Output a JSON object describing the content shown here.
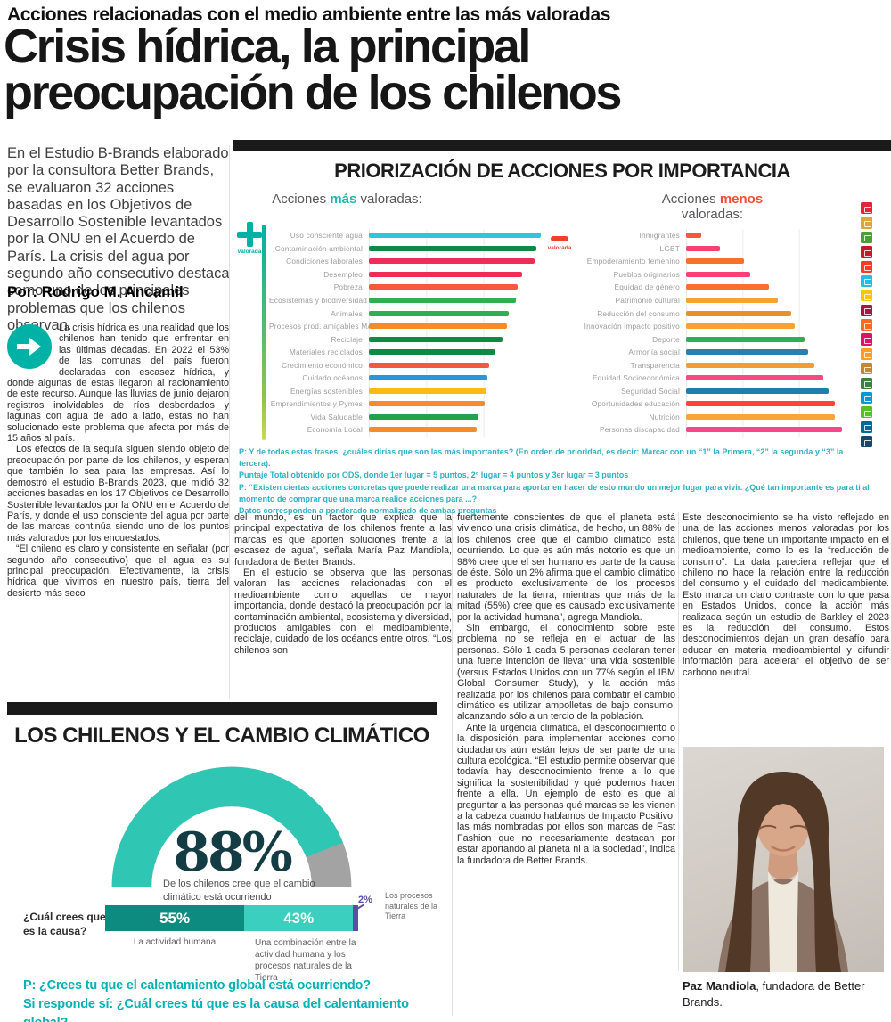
{
  "page": {
    "kicker": "Acciones relacionadas con el medio ambiente entre las más valoradas",
    "headline_line1": "Crisis hídrica, la principal",
    "headline_line2": "preocupación de los chilenos"
  },
  "intro": {
    "text": "En el Estudio B-Brands elaborado por la consultora Better Brands, se evaluaron 32 acciones basadas en los Objetivos de Desarrollo Sostenible levantados por la ONU en el Acuerdo de París. La crisis del agua por segundo año consecutivo destaca como uno de los principales problemas que los chilenos observan.",
    "byline": "Por: Rodrigo M. Ancamil"
  },
  "article": {
    "col1": [
      "La crisis hídrica es una realidad que los chilenos han tenido que enfrentar en las últimas décadas. En 2022 el 53% de las comunas del país fueron declaradas con escasez hídrica, y donde algunas de estas llegaron al racionamiento de este recurso. Aunque las lluvias de junio dejaron registros inolvidables de ríos desbordados y lagunas con agua de lado a lado, estas no han solucionado este problema que afecta por más de 15 años al país.",
      "Los efectos de la sequía siguen siendo objeto de preocupación por parte de los chilenos, y esperan que también lo sea para las empresas. Así lo demostró el estudio B-Brands 2023, que midió 32 acciones basadas en los 17 Objetivos de Desarrollo Sostenible levantados por la ONU en el Acuerdo de París, y donde el uso consciente del agua por parte de las marcas continúa siendo uno de los puntos más valorados por los encuestados.",
      "“El chileno es claro y consistente en señalar (por segundo año consecutivo) que el agua es su principal preocupación. Efectivamente, la crisis hídrica que vivimos en nuestro país, tierra del desierto más seco"
    ],
    "col2": [
      "del mundo, es un factor que explica que la principal expectativa de los chilenos frente a las marcas es que aporten soluciones frente a la escasez de agua”, señala María Paz Mandiola, fundadora de Better Brands.",
      "En el estudio se observa que las personas valoran las acciones relacionadas con el medioambiente como aquellas de mayor importancia, donde destacó la preocupación por la contaminación ambiental, ecosistema y diversidad, productos amigables con el medioambiente, reciclaje, cuidado de los océanos entre otros. “Los chilenos son"
    ],
    "col3": [
      "fuertemente conscientes de que el planeta está viviendo una crisis climática, de hecho, un 88% de los chilenos cree que el cambio climático está ocurriendo. Lo que es aún más notorio es que un 98% cree que el ser humano es parte de la causa de éste. Sólo un 2% afirma que el cambio climático es producto exclusivamente de los procesos naturales de la tierra, mientras que más de la mitad (55%) cree que es causado exclusivamente por la actividad humana”, agrega Mandiola.",
      "Sin embargo, el conocimiento sobre este problema no se refleja en el actuar de las personas. Sólo 1 cada 5 personas declaran tener una fuerte intención de llevar una vida sostenible (versus Estados Unidos con un 77% según el IBM Global Consumer Study), y la acción más realizada por los chilenos para combatir el cambio climático es utilizar ampolletas de bajo consumo, alcanzando sólo a un tercio de la población.",
      "Ante la urgencia climática, el desconocimiento o la disposición para implementar acciones como ciudadanos aún están lejos de ser parte de una cultura ecológica. “El estudio permite observar que todavía hay desconocimiento frente a lo que significa la sostenibilidad y qué podemos hacer frente a ella. Un ejemplo de esto es que al preguntar a las personas qué marcas se les vienen a la cabeza cuando hablamos de Impacto Positivo, las más nombradas por ellos son marcas de Fast Fashion que no necesariamente destacan por estar aportando al planeta ni a la sociedad”, indica la fundadora de Better Brands."
    ],
    "col4": [
      "Este desconocimiento se ha visto reflejado en una de las acciones menos valoradas por los chilenos, que tiene un importante impacto en el medioambiente, como lo es la “reducción de consumo”. La data pareciera reflejar que el chileno no hace la relación entre la reducción del consumo y el cuidado del medioambiente. Esto marca un claro contraste con lo que pasa en Estados Unidos, donde la acción más realizada según un estudio de Barkley el 2023 es la reducción del consumo. Estos desconocimientos dejan un gran desafío para educar en materia medioambiental y difundir información para acelerar el objetivo de ser carbono neutral."
    ]
  },
  "chart_data": [
    {
      "type": "bar",
      "orientation": "horizontal",
      "title": "PRIORIZACIÓN DE ACCIONES POR IMPORTANCIA",
      "value_scale": "puntaje ponderado normalizado (0–1, estimado de longitud de barras)",
      "panels": [
        {
          "header": {
            "pre": "Acciones",
            "accent": "más",
            "accent_color": "#1ab9ab",
            "post": "valoradas:"
          },
          "axis_marker": {
            "symbol": "+",
            "label": "valorada",
            "color": "#00b1a5"
          },
          "items": [
            {
              "label": "Uso consciente agua",
              "value": 1.0,
              "color": "#2fc5dc"
            },
            {
              "label": "Contaminación ambiental",
              "value": 0.975,
              "color": "#0e8a44"
            },
            {
              "label": "Condiciones laborales",
              "value": 0.965,
              "color": "#ef2c55"
            },
            {
              "label": "Desempleo",
              "value": 0.89,
              "color": "#ef2c55"
            },
            {
              "label": "Pobreza",
              "value": 0.865,
              "color": "#f6573f"
            },
            {
              "label": "Ecosistemas y biodiversidad",
              "value": 0.855,
              "color": "#2fae54"
            },
            {
              "label": "Animales",
              "value": 0.815,
              "color": "#2fae54"
            },
            {
              "label": "Procesos prod. amigables MA",
              "value": 0.805,
              "color": "#f68b2c"
            },
            {
              "label": "Reciclaje",
              "value": 0.775,
              "color": "#0e8a44"
            },
            {
              "label": "Materiales reciclados",
              "value": 0.735,
              "color": "#0e8a44"
            },
            {
              "label": "Crecimiento económico",
              "value": 0.7,
              "color": "#f6573f"
            },
            {
              "label": "Cuidado océanos",
              "value": 0.69,
              "color": "#2a96d9"
            },
            {
              "label": "Energías sostenibles",
              "value": 0.685,
              "color": "#fcba12"
            },
            {
              "label": "Emprendimientos y Pymes",
              "value": 0.675,
              "color": "#f68b2c"
            },
            {
              "label": "Vida Saludable",
              "value": 0.635,
              "color": "#23a24d"
            },
            {
              "label": "Economía Local",
              "value": 0.625,
              "color": "#f68b2c"
            }
          ]
        },
        {
          "header": {
            "pre": "Acciones",
            "accent": "menos",
            "accent_color": "#f4502e",
            "post": "valoradas:"
          },
          "axis_marker": {
            "symbol": "−",
            "label": "valorada",
            "color": "#f0402d"
          },
          "items": [
            {
              "label": "Inmigrantes",
              "value": 0.09,
              "color": "#f6573f"
            },
            {
              "label": "LGBT",
              "value": 0.2,
              "color": "#f83f6d"
            },
            {
              "label": "Empoderamiento femenino",
              "value": 0.34,
              "color": "#f8702e"
            },
            {
              "label": "Pueblos originarios",
              "value": 0.38,
              "color": "#f83f78"
            },
            {
              "label": "Equidad de género",
              "value": 0.49,
              "color": "#f8702e"
            },
            {
              "label": "Patrimonio cultural",
              "value": 0.54,
              "color": "#f9a233"
            },
            {
              "label": "Reducción del consumo",
              "value": 0.62,
              "color": "#e98f2e"
            },
            {
              "label": "Innovación impacto positivo",
              "value": 0.64,
              "color": "#f9a233"
            },
            {
              "label": "Deporte",
              "value": 0.7,
              "color": "#2fae54"
            },
            {
              "label": "Armonía social",
              "value": 0.72,
              "color": "#2b80ae"
            },
            {
              "label": "Transparencia",
              "value": 0.76,
              "color": "#f09d38"
            },
            {
              "label": "Equidad Socioeconómica",
              "value": 0.81,
              "color": "#f84a81"
            },
            {
              "label": "Seguridad Social",
              "value": 0.84,
              "color": "#1d7fae"
            },
            {
              "label": "Oportunidades educación",
              "value": 0.88,
              "color": "#fa4632"
            },
            {
              "label": "Nutrición",
              "value": 0.88,
              "color": "#f9a43a"
            },
            {
              "label": "Personas discapacidad",
              "value": 0.92,
              "color": "#f8478a"
            }
          ]
        }
      ],
      "footnotes": [
        "P: Y de todas estas frases, ¿cuáles dirías que son las más importantes? (En orden de prioridad, es decir: Marcar con un “1” la Primera, “2” la segunda y “3” la tercera).",
        "Puntaje Total obtenido por ODS, donde 1er lugar = 5 puntos, 2° lugar = 4 puntos y 3er lugar = 3 puntos",
        "P: “Existen ciertas acciones concretas que puede realizar una marca para aportar en hacer de esto mundo un mejor lugar para vivir. ¿Qué tan importante es para ti al momento de comprar que una marca realice acciones para ...?",
        "Datos corresponden a ponderado normalizado de ambas preguntas"
      ],
      "sdg_column": {
        "name": "ODS (Objetivos de Desarrollo Sostenible) icons",
        "colors": [
          "#E5243B",
          "#DDA63A",
          "#4C9F38",
          "#C5192D",
          "#FF3A21",
          "#26BDE2",
          "#FCC30B",
          "#A21942",
          "#FD6925",
          "#DD1367",
          "#FD9D24",
          "#BF8B2E",
          "#3F7E44",
          "#0A97D9",
          "#56C02B",
          "#00689D",
          "#19486A"
        ]
      }
    },
    {
      "type": "gauge+stacked-bar",
      "title": "LOS CHILENOS Y EL CAMBIO CLIMÁTICO",
      "gauge": {
        "value_pct": 88,
        "label": "De los chilenos cree que el cambio climático está ocurriendo",
        "color": "#2fc7b4",
        "rest_color": "#a3a3a3",
        "value_color": "#143c44"
      },
      "question": "¿Cuál crees que es la causa?",
      "segments": [
        {
          "label": "La actividad humana",
          "value": 55,
          "color": "#0e8b80"
        },
        {
          "label": "Una combinación entre la actividad humana y los procesos naturales de la Tierra",
          "value": 43,
          "color": "#3bcfc0"
        },
        {
          "label": "Los procesos naturales de la Tierra",
          "value": 2,
          "color": "#5a4fa5"
        }
      ],
      "footnotes": [
        "P: ¿Crees tu que el calentamiento global está ocurriendo?",
        "Si responde sí: ¿Cuál crees tú que es la causa del calentamiento global?"
      ]
    }
  ],
  "photo": {
    "caption_name": "Paz Mandiola",
    "caption_rest": ", fundadora de Better Brands."
  }
}
